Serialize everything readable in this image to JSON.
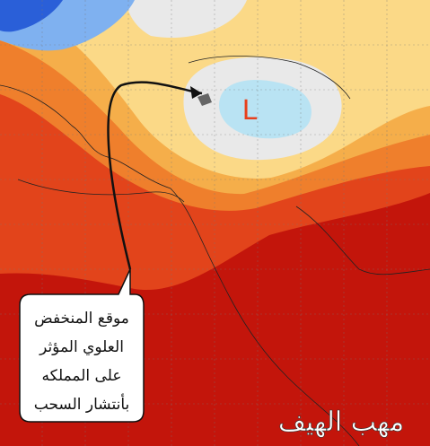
{
  "map": {
    "marker": "L",
    "callout_lines": [
      "موقع المنخفض",
      "العلوي المؤثر",
      "على المملكه",
      "بأنتشار السحب"
    ],
    "watermark": "مهب الهيف"
  }
}
